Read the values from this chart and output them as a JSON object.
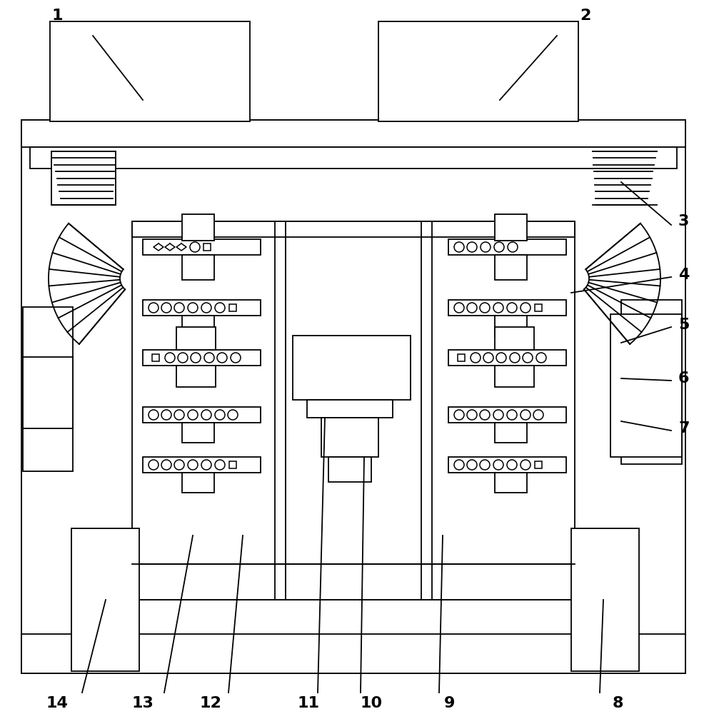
{
  "bg_color": "#ffffff",
  "lc": "#000000",
  "lw": 1.3,
  "fig_width": 9.93,
  "fig_height": 10.0,
  "label_fontsize": 16
}
